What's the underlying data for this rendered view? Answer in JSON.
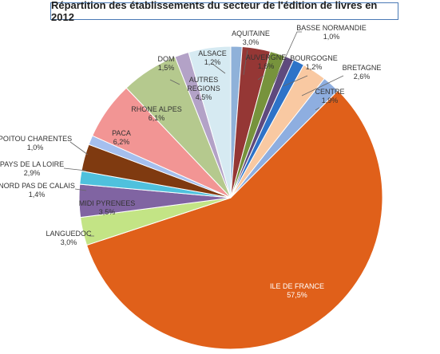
{
  "chart_data": {
    "type": "pie",
    "title": "Répartition des établissements du secteur de l'édition de livres en 2012",
    "slices": [
      {
        "name": "ALSACE",
        "value": 1.2,
        "label": "1,2%",
        "color": "#8fb1d9"
      },
      {
        "name": "AQUITAINE",
        "value": 3.0,
        "label": "3,0%",
        "color": "#953735"
      },
      {
        "name": "AUVERGNE",
        "value": 1.6,
        "label": "1,6%",
        "color": "#77933c"
      },
      {
        "name": "BASSE NORMANDIE",
        "value": 1.0,
        "label": "1,0%",
        "color": "#5f4a7e"
      },
      {
        "name": "BOURGOGNE",
        "value": 1.2,
        "label": "1,2%",
        "color": "#2e73c8"
      },
      {
        "name": "BRETAGNE",
        "value": 2.6,
        "label": "2,6%",
        "color": "#f9c9a2"
      },
      {
        "name": "CENTRE",
        "value": 1.9,
        "label": "1,9%",
        "color": "#8eaee0"
      },
      {
        "name": "ILE DE FRANCE",
        "value": 57.5,
        "label": "57,5%",
        "color": "#e0601a"
      },
      {
        "name": "LANGUEDOC",
        "value": 3.0,
        "label": "3,0%",
        "color": "#c3e485"
      },
      {
        "name": "MIDI PYRENEES",
        "value": 3.5,
        "label": "3,5%",
        "color": "#8064a2"
      },
      {
        "name": "NORD PAS DE CALAIS",
        "value": 1.4,
        "label": "1,4%",
        "color": "#4fc1dd"
      },
      {
        "name": "PAYS DE LA  LOIRE",
        "value": 2.9,
        "label": "2,9%",
        "color": "#7f3a10"
      },
      {
        "name": "POITOU CHARENTES",
        "value": 1.0,
        "label": "1,0%",
        "color": "#a5bfee"
      },
      {
        "name": "PACA",
        "value": 6.2,
        "label": "6,2%",
        "color": "#f29594"
      },
      {
        "name": "RHONE ALPES",
        "value": 6.1,
        "label": "6,1%",
        "color": "#b5c98e"
      },
      {
        "name": "DOM",
        "value": 1.5,
        "label": "1,5%",
        "color": "#b3a2c7"
      },
      {
        "name": "AUTRES REGIONS",
        "value": 4.5,
        "label": "4,5%",
        "color": "#d6eaf2"
      }
    ],
    "start_angle_deg": 0,
    "direction": "clockwise",
    "legend": "none"
  }
}
